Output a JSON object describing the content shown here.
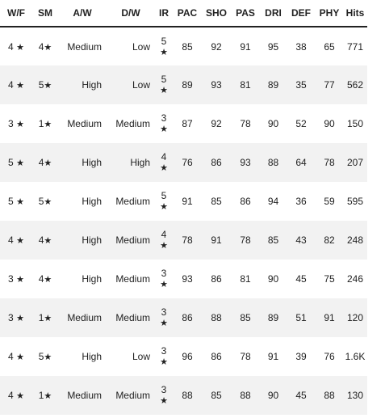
{
  "headers": [
    "W/F",
    "SM",
    "A/W",
    "D/W",
    "IR",
    "PAC",
    "SHO",
    "PAS",
    "DRI",
    "DEF",
    "PHY",
    "Hits"
  ],
  "star_glyph": "★",
  "rows": [
    {
      "wf": "4",
      "sm": "4",
      "aw": "Medium",
      "dw": "Low",
      "ir": "5",
      "pac": "85",
      "sho": "92",
      "pas": "91",
      "dri": "95",
      "def": "38",
      "phy": "65",
      "hits": "771"
    },
    {
      "wf": "4",
      "sm": "5",
      "aw": "High",
      "dw": "Low",
      "ir": "5",
      "pac": "89",
      "sho": "93",
      "pas": "81",
      "dri": "89",
      "def": "35",
      "phy": "77",
      "hits": "562"
    },
    {
      "wf": "3",
      "sm": "1",
      "aw": "Medium",
      "dw": "Medium",
      "ir": "3",
      "pac": "87",
      "sho": "92",
      "pas": "78",
      "dri": "90",
      "def": "52",
      "phy": "90",
      "hits": "150"
    },
    {
      "wf": "5",
      "sm": "4",
      "aw": "High",
      "dw": "High",
      "ir": "4",
      "pac": "76",
      "sho": "86",
      "pas": "93",
      "dri": "88",
      "def": "64",
      "phy": "78",
      "hits": "207"
    },
    {
      "wf": "5",
      "sm": "5",
      "aw": "High",
      "dw": "Medium",
      "ir": "5",
      "pac": "91",
      "sho": "85",
      "pas": "86",
      "dri": "94",
      "def": "36",
      "phy": "59",
      "hits": "595"
    },
    {
      "wf": "4",
      "sm": "4",
      "aw": "High",
      "dw": "Medium",
      "ir": "4",
      "pac": "78",
      "sho": "91",
      "pas": "78",
      "dri": "85",
      "def": "43",
      "phy": "82",
      "hits": "248"
    },
    {
      "wf": "3",
      "sm": "4",
      "aw": "High",
      "dw": "Medium",
      "ir": "3",
      "pac": "93",
      "sho": "86",
      "pas": "81",
      "dri": "90",
      "def": "45",
      "phy": "75",
      "hits": "246"
    },
    {
      "wf": "3",
      "sm": "1",
      "aw": "Medium",
      "dw": "Medium",
      "ir": "3",
      "pac": "86",
      "sho": "88",
      "pas": "85",
      "dri": "89",
      "def": "51",
      "phy": "91",
      "hits": "120"
    },
    {
      "wf": "4",
      "sm": "5",
      "aw": "High",
      "dw": "Low",
      "ir": "3",
      "pac": "96",
      "sho": "86",
      "pas": "78",
      "dri": "91",
      "def": "39",
      "phy": "76",
      "hits": "1.6K"
    },
    {
      "wf": "4",
      "sm": "1",
      "aw": "Medium",
      "dw": "Medium",
      "ir": "3",
      "pac": "88",
      "sho": "85",
      "pas": "88",
      "dri": "90",
      "def": "45",
      "phy": "88",
      "hits": "130"
    }
  ]
}
